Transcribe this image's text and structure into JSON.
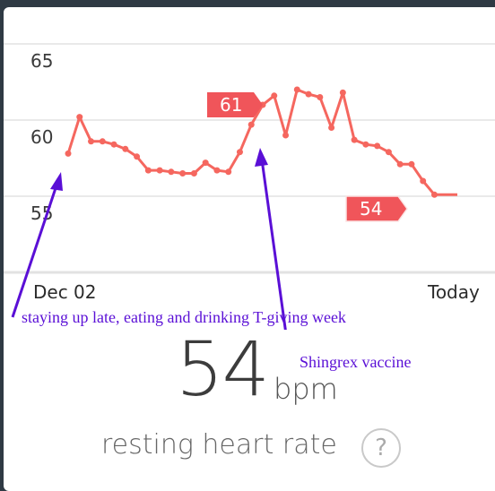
{
  "chart_data": {
    "type": "line",
    "ylim": [
      51,
      67
    ],
    "y_ticks": [
      "65",
      "60",
      "55"
    ],
    "x_labels": {
      "start": "Dec 02",
      "end": "Today"
    },
    "series": [
      {
        "values": [
          57.8,
          60.2,
          58.6,
          58.6,
          58.4,
          58.1,
          57.6,
          56.7,
          56.7,
          56.6,
          56.5,
          56.5,
          57.2,
          56.7,
          56.6,
          57.9,
          59.7,
          61,
          61.6,
          59,
          62,
          61.7,
          61.5,
          59.5,
          61.8,
          58.7,
          58.4,
          58.3,
          57.9,
          57.1,
          57.1,
          56,
          55.1,
          55.1,
          55.1
        ],
        "color": "#f5675f"
      }
    ],
    "callouts": [
      {
        "label": "61"
      },
      {
        "label": "54"
      }
    ]
  },
  "annotations": {
    "left": "staying up late, eating and drinking T-giving week",
    "right": "Shingrex vaccine"
  },
  "summary": {
    "value": "54",
    "unit": "bpm",
    "label": "resting heart rate",
    "help": "?"
  },
  "colors": {
    "line": "#f5675f",
    "badge": "#f0555a",
    "annotation": "#5a0fd6"
  }
}
